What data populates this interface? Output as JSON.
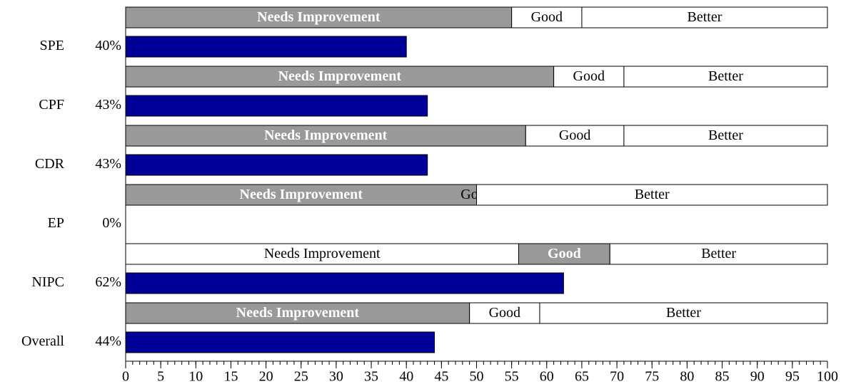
{
  "chart_data": {
    "type": "bullet",
    "categories": [
      "SPE",
      "CPF",
      "CDR",
      "EP",
      "NIPC",
      "Overall"
    ],
    "values": [
      40,
      43,
      43,
      0,
      62.4,
      44
    ],
    "value_labels": [
      "40%",
      "43%",
      "43%",
      "0%",
      "62%",
      "44%"
    ],
    "color": "#000099",
    "series": [
      {
        "name": "Needs Improvement",
        "values": [
          55,
          61,
          57,
          50,
          56,
          49
        ]
      },
      {
        "name": "Good",
        "values": [
          10,
          10,
          14,
          0,
          13,
          10
        ]
      },
      {
        "name": "Better",
        "values": [
          35,
          29,
          29,
          50,
          31,
          41
        ]
      }
    ],
    "highlight_color": "#999999",
    "xlim": [
      0,
      100
    ],
    "xticks": [
      0,
      5,
      10,
      15,
      20,
      25,
      30,
      35,
      40,
      45,
      50,
      55,
      60,
      65,
      70,
      75,
      80,
      85,
      90,
      95,
      100
    ],
    "minor_tick_step": 1
  }
}
